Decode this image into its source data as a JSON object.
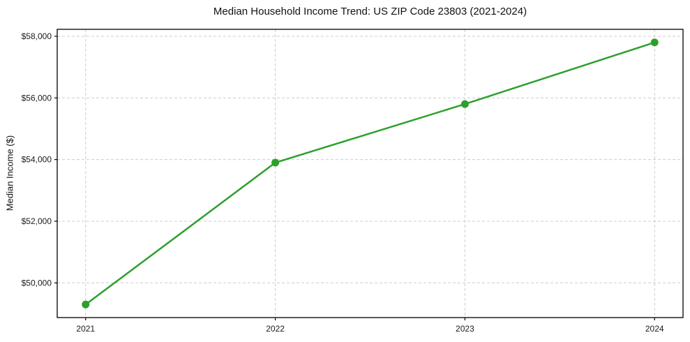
{
  "chart_data": {
    "type": "line",
    "title": "Median Household Income Trend: US ZIP Code 23803 (2021-2024)",
    "xlabel": "",
    "ylabel": "Median Income ($)",
    "x": [
      2021,
      2022,
      2023,
      2024
    ],
    "series": [
      {
        "name": "Median Household Income",
        "values": [
          49300,
          53900,
          55800,
          57800
        ]
      }
    ],
    "xticks": [
      2021,
      2022,
      2023,
      2024
    ],
    "xtick_labels": [
      "2021",
      "2022",
      "2023",
      "2024"
    ],
    "yticks": [
      50000,
      52000,
      54000,
      56000,
      58000
    ],
    "ytick_labels": [
      "$50,000",
      "$52,000",
      "$54,000",
      "$56,000",
      "$58,000"
    ],
    "xlim": [
      2020.85,
      2024.15
    ],
    "ylim": [
      48875,
      58225
    ],
    "grid": true,
    "grid_style": "dashed",
    "legend_position": "none",
    "line_color": "#2ca02c",
    "marker": "circle",
    "marker_radius": 5.5,
    "line_width": 2.5,
    "grid_color": "#cccccc",
    "spine_color": "#000000",
    "background_color": "#ffffff"
  }
}
